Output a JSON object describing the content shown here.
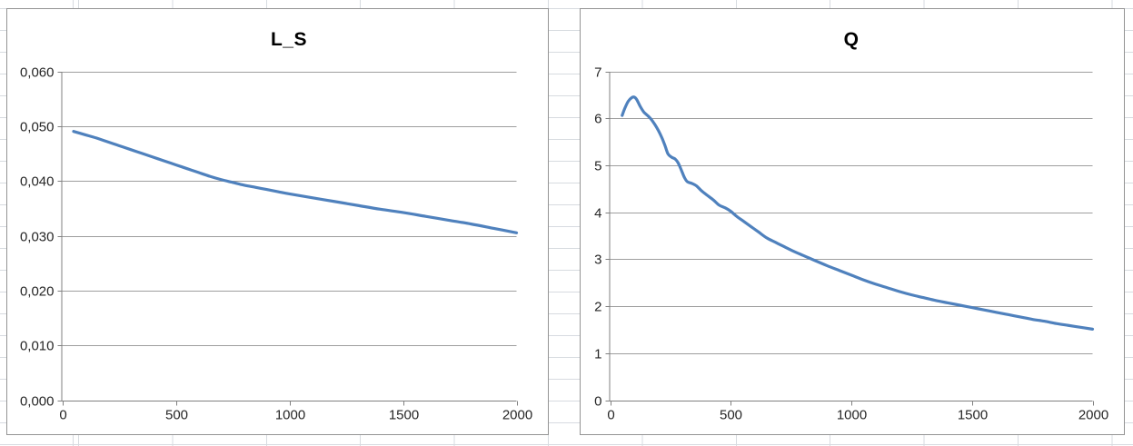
{
  "workspace": {
    "kind": "spreadsheet with two embedded line charts",
    "sheet_gridline_color": "#d7dbe0",
    "chart_border_color": "#949494",
    "chart_background_color": "#ffffff"
  },
  "chart_data": [
    {
      "type": "line",
      "title": "L_S",
      "xlabel": "",
      "ylabel": "",
      "xlim": [
        0,
        2000
      ],
      "ylim": [
        0,
        0.06
      ],
      "grid": true,
      "legend": false,
      "number_format": "comma-decimal",
      "line_color": "#4f81bd",
      "gridline_color": "#9e9e9e",
      "axis_color": "#808080",
      "label_color": "#262626",
      "x_tick_values": [
        0,
        500,
        1000,
        1500,
        2000
      ],
      "x_tick_labels": [
        "0",
        "500",
        "1000",
        "1500",
        "2000"
      ],
      "y_tick_values": [
        0,
        0.01,
        0.02,
        0.03,
        0.04,
        0.05,
        0.06
      ],
      "y_tick_labels": [
        "0,000",
        "0,010",
        "0,020",
        "0,030",
        "0,040",
        "0,050",
        "0,060"
      ],
      "x": [
        50,
        100,
        150,
        200,
        250,
        300,
        350,
        400,
        450,
        500,
        550,
        600,
        650,
        700,
        750,
        800,
        850,
        900,
        950,
        1000,
        1100,
        1200,
        1300,
        1400,
        1500,
        1600,
        1700,
        1800,
        1900,
        2000
      ],
      "y": [
        0.0492,
        0.0486,
        0.048,
        0.0473,
        0.0466,
        0.0459,
        0.0452,
        0.0445,
        0.0438,
        0.0431,
        0.0424,
        0.0417,
        0.041,
        0.0404,
        0.0399,
        0.0394,
        0.039,
        0.0386,
        0.0382,
        0.0378,
        0.0371,
        0.0364,
        0.0357,
        0.035,
        0.0344,
        0.0337,
        0.033,
        0.0323,
        0.0315,
        0.0307
      ]
    },
    {
      "type": "line",
      "title": "Q",
      "xlabel": "",
      "ylabel": "",
      "xlim": [
        0,
        2000
      ],
      "ylim": [
        0,
        7
      ],
      "grid": true,
      "legend": false,
      "number_format": "plain",
      "line_color": "#4f81bd",
      "gridline_color": "#9e9e9e",
      "axis_color": "#808080",
      "label_color": "#262626",
      "x_tick_values": [
        0,
        500,
        1000,
        1500,
        2000
      ],
      "x_tick_labels": [
        "0",
        "500",
        "1000",
        "1500",
        "2000"
      ],
      "y_tick_values": [
        0,
        1,
        2,
        3,
        4,
        5,
        6,
        7
      ],
      "y_tick_labels": [
        "0",
        "1",
        "2",
        "3",
        "4",
        "5",
        "6",
        "7"
      ],
      "x": [
        50,
        60,
        75,
        90,
        100,
        110,
        125,
        140,
        155,
        170,
        185,
        200,
        215,
        228,
        240,
        255,
        270,
        282,
        295,
        308,
        320,
        340,
        358,
        378,
        400,
        428,
        452,
        478,
        500,
        525,
        555,
        585,
        615,
        650,
        685,
        720,
        760,
        800,
        845,
        900,
        950,
        1000,
        1050,
        1100,
        1150,
        1200,
        1250,
        1300,
        1350,
        1400,
        1450,
        1500,
        1550,
        1600,
        1650,
        1700,
        1750,
        1800,
        1850,
        1900,
        1950,
        2000
      ],
      "y": [
        6.08,
        6.22,
        6.38,
        6.46,
        6.47,
        6.42,
        6.27,
        6.15,
        6.08,
        6.0,
        5.89,
        5.76,
        5.6,
        5.43,
        5.26,
        5.19,
        5.15,
        5.07,
        4.92,
        4.76,
        4.67,
        4.63,
        4.58,
        4.48,
        4.39,
        4.28,
        4.17,
        4.11,
        4.04,
        3.93,
        3.82,
        3.71,
        3.6,
        3.47,
        3.38,
        3.29,
        3.19,
        3.1,
        3.0,
        2.88,
        2.78,
        2.68,
        2.58,
        2.49,
        2.41,
        2.33,
        2.26,
        2.2,
        2.14,
        2.09,
        2.04,
        1.99,
        1.94,
        1.89,
        1.84,
        1.79,
        1.74,
        1.7,
        1.65,
        1.61,
        1.57,
        1.53
      ]
    }
  ]
}
